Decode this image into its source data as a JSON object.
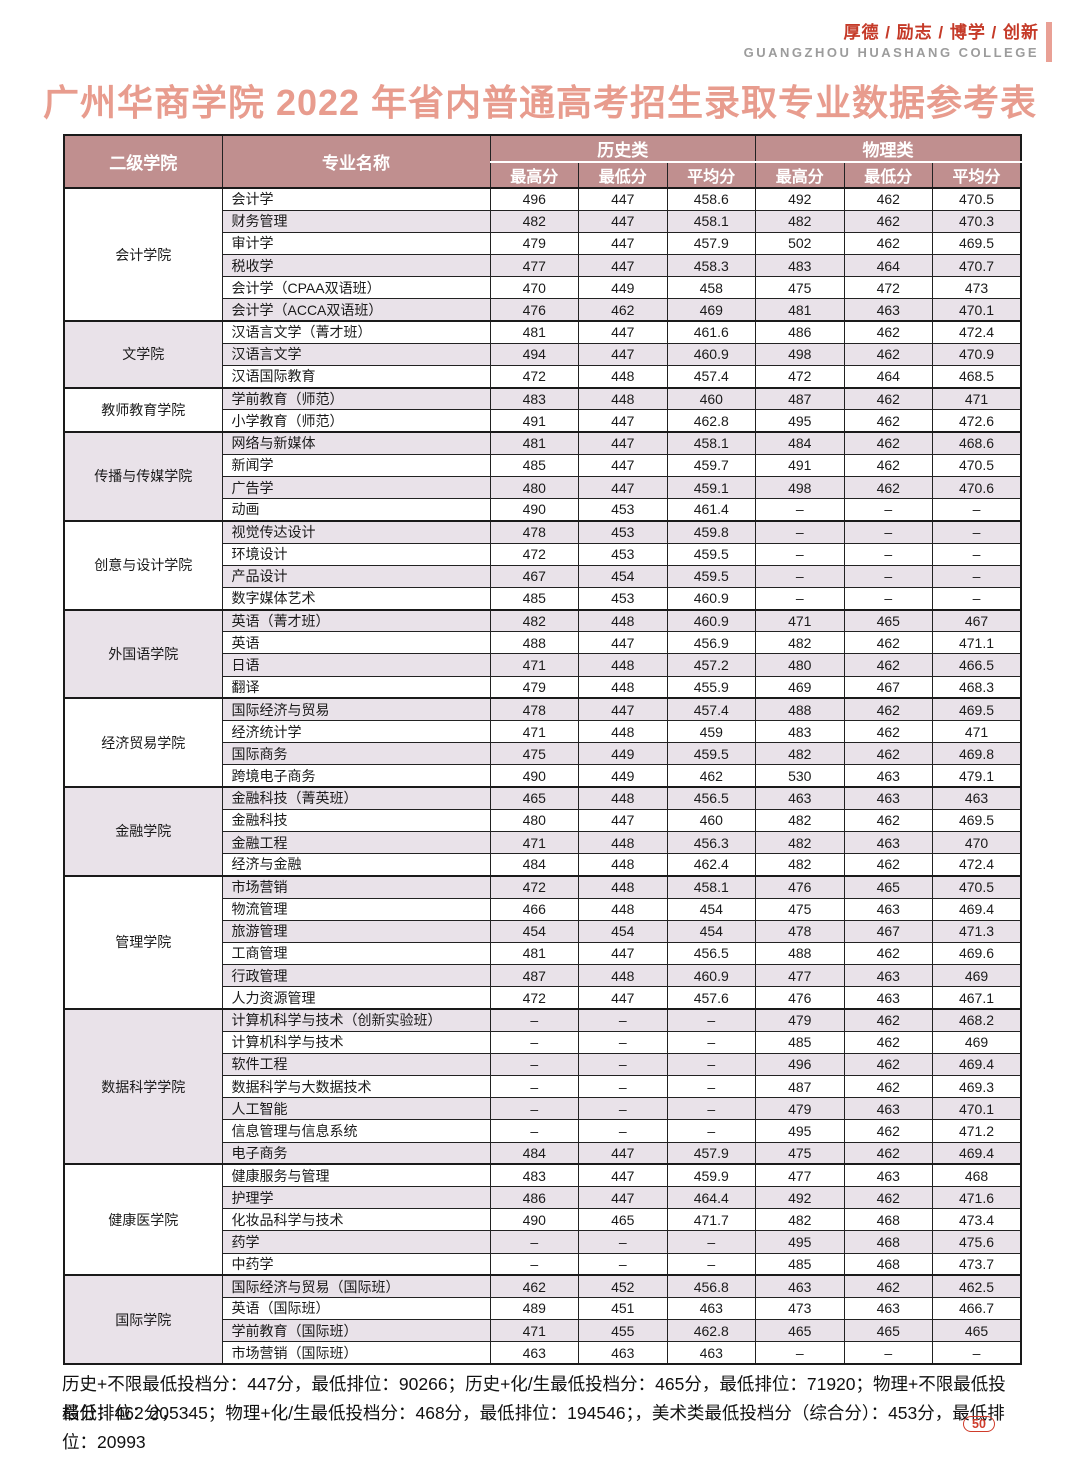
{
  "page": {
    "motto": "厚德 / 励志 / 博学 / 创新",
    "college_en": "GUANGZHOU HUASHANG COLLEGE",
    "title": "广州华商学院 2022 年省内普通高考招生录取专业数据参考表",
    "page_number": "50"
  },
  "table": {
    "headers": {
      "college": "二级学院",
      "major": "专业名称",
      "history": "历史类",
      "physics": "物理类",
      "max": "最高分",
      "min": "最低分",
      "avg": "平均分"
    },
    "empty_marker": "–",
    "groups": [
      {
        "college": "会计学院",
        "rows": [
          {
            "major": "会计学",
            "scores": [
              "496",
              "447",
              "458.6",
              "492",
              "462",
              "470.5"
            ]
          },
          {
            "major": "财务管理",
            "scores": [
              "482",
              "447",
              "458.1",
              "482",
              "462",
              "470.3"
            ]
          },
          {
            "major": "审计学",
            "scores": [
              "479",
              "447",
              "457.9",
              "502",
              "462",
              "469.5"
            ]
          },
          {
            "major": "税收学",
            "scores": [
              "477",
              "447",
              "458.3",
              "483",
              "464",
              "470.7"
            ]
          },
          {
            "major": "会计学（CPAA双语班）",
            "scores": [
              "470",
              "449",
              "458",
              "475",
              "472",
              "473"
            ]
          },
          {
            "major": "会计学（ACCA双语班）",
            "scores": [
              "476",
              "462",
              "469",
              "481",
              "463",
              "470.1"
            ]
          }
        ]
      },
      {
        "college": "文学院",
        "rows": [
          {
            "major": "汉语言文学（菁才班）",
            "scores": [
              "481",
              "447",
              "461.6",
              "486",
              "462",
              "472.4"
            ]
          },
          {
            "major": "汉语言文学",
            "scores": [
              "494",
              "447",
              "460.9",
              "498",
              "462",
              "470.9"
            ]
          },
          {
            "major": "汉语国际教育",
            "scores": [
              "472",
              "448",
              "457.4",
              "472",
              "464",
              "468.5"
            ]
          }
        ]
      },
      {
        "college": "教师教育学院",
        "rows": [
          {
            "major": "学前教育（师范）",
            "scores": [
              "483",
              "448",
              "460",
              "487",
              "462",
              "471"
            ]
          },
          {
            "major": "小学教育（师范）",
            "scores": [
              "491",
              "447",
              "462.8",
              "495",
              "462",
              "472.6"
            ]
          }
        ]
      },
      {
        "college": "传播与传媒学院",
        "rows": [
          {
            "major": "网络与新媒体",
            "scores": [
              "481",
              "447",
              "458.1",
              "484",
              "462",
              "468.6"
            ]
          },
          {
            "major": "新闻学",
            "scores": [
              "485",
              "447",
              "459.7",
              "491",
              "462",
              "470.5"
            ]
          },
          {
            "major": "广告学",
            "scores": [
              "480",
              "447",
              "459.1",
              "498",
              "462",
              "470.6"
            ]
          },
          {
            "major": "动画",
            "scores": [
              "490",
              "453",
              "461.4",
              "–",
              "–",
              "–"
            ]
          }
        ]
      },
      {
        "college": "创意与设计学院",
        "rows": [
          {
            "major": "视觉传达设计",
            "scores": [
              "478",
              "453",
              "459.8",
              "–",
              "–",
              "–"
            ]
          },
          {
            "major": "环境设计",
            "scores": [
              "472",
              "453",
              "459.5",
              "–",
              "–",
              "–"
            ]
          },
          {
            "major": "产品设计",
            "scores": [
              "467",
              "454",
              "459.5",
              "–",
              "–",
              "–"
            ]
          },
          {
            "major": "数字媒体艺术",
            "scores": [
              "485",
              "453",
              "460.9",
              "–",
              "–",
              "–"
            ]
          }
        ]
      },
      {
        "college": "外国语学院",
        "rows": [
          {
            "major": "英语（菁才班）",
            "scores": [
              "482",
              "448",
              "460.9",
              "471",
              "465",
              "467"
            ]
          },
          {
            "major": "英语",
            "scores": [
              "488",
              "447",
              "456.9",
              "482",
              "462",
              "471.1"
            ]
          },
          {
            "major": "日语",
            "scores": [
              "471",
              "448",
              "457.2",
              "480",
              "462",
              "466.5"
            ]
          },
          {
            "major": "翻译",
            "scores": [
              "479",
              "448",
              "455.9",
              "469",
              "467",
              "468.3"
            ]
          }
        ]
      },
      {
        "college": "经济贸易学院",
        "rows": [
          {
            "major": "国际经济与贸易",
            "scores": [
              "478",
              "447",
              "457.4",
              "488",
              "462",
              "469.5"
            ]
          },
          {
            "major": "经济统计学",
            "scores": [
              "471",
              "448",
              "459",
              "483",
              "462",
              "471"
            ]
          },
          {
            "major": "国际商务",
            "scores": [
              "475",
              "449",
              "459.5",
              "482",
              "462",
              "469.8"
            ]
          },
          {
            "major": "跨境电子商务",
            "scores": [
              "490",
              "449",
              "462",
              "530",
              "463",
              "479.1"
            ]
          }
        ]
      },
      {
        "college": "金融学院",
        "rows": [
          {
            "major": "金融科技（菁英班）",
            "scores": [
              "465",
              "448",
              "456.5",
              "463",
              "463",
              "463"
            ]
          },
          {
            "major": "金融科技",
            "scores": [
              "480",
              "447",
              "460",
              "482",
              "462",
              "469.5"
            ]
          },
          {
            "major": "金融工程",
            "scores": [
              "471",
              "448",
              "456.3",
              "482",
              "463",
              "470"
            ]
          },
          {
            "major": "经济与金融",
            "scores": [
              "484",
              "448",
              "462.4",
              "482",
              "462",
              "472.4"
            ]
          }
        ]
      },
      {
        "college": "管理学院",
        "rows": [
          {
            "major": "市场营销",
            "scores": [
              "472",
              "448",
              "458.1",
              "476",
              "465",
              "470.5"
            ]
          },
          {
            "major": "物流管理",
            "scores": [
              "466",
              "448",
              "454",
              "475",
              "463",
              "469.4"
            ]
          },
          {
            "major": "旅游管理",
            "scores": [
              "454",
              "454",
              "454",
              "478",
              "467",
              "471.3"
            ]
          },
          {
            "major": "工商管理",
            "scores": [
              "481",
              "447",
              "456.5",
              "488",
              "462",
              "469.6"
            ]
          },
          {
            "major": "行政管理",
            "scores": [
              "487",
              "448",
              "460.9",
              "477",
              "463",
              "469"
            ]
          },
          {
            "major": "人力资源管理",
            "scores": [
              "472",
              "447",
              "457.6",
              "476",
              "463",
              "467.1"
            ]
          }
        ]
      },
      {
        "college": "数据科学学院",
        "rows": [
          {
            "major": "计算机科学与技术（创新实验班）",
            "scores": [
              "–",
              "–",
              "–",
              "479",
              "462",
              "468.2"
            ]
          },
          {
            "major": "计算机科学与技术",
            "scores": [
              "–",
              "–",
              "–",
              "485",
              "462",
              "469"
            ]
          },
          {
            "major": "软件工程",
            "scores": [
              "–",
              "–",
              "–",
              "496",
              "462",
              "469.4"
            ]
          },
          {
            "major": "数据科学与大数据技术",
            "scores": [
              "–",
              "–",
              "–",
              "487",
              "462",
              "469.3"
            ]
          },
          {
            "major": "人工智能",
            "scores": [
              "–",
              "–",
              "–",
              "479",
              "463",
              "470.1"
            ]
          },
          {
            "major": "信息管理与信息系统",
            "scores": [
              "–",
              "–",
              "–",
              "495",
              "462",
              "471.2"
            ]
          },
          {
            "major": "电子商务",
            "scores": [
              "484",
              "447",
              "457.9",
              "475",
              "462",
              "469.4"
            ]
          }
        ]
      },
      {
        "college": "健康医学院",
        "rows": [
          {
            "major": "健康服务与管理",
            "scores": [
              "483",
              "447",
              "459.9",
              "477",
              "463",
              "468"
            ]
          },
          {
            "major": "护理学",
            "scores": [
              "486",
              "447",
              "464.4",
              "492",
              "462",
              "471.6"
            ]
          },
          {
            "major": "化妆品科学与技术",
            "scores": [
              "490",
              "465",
              "471.7",
              "482",
              "468",
              "473.4"
            ]
          },
          {
            "major": "药学",
            "scores": [
              "–",
              "–",
              "–",
              "495",
              "468",
              "475.6"
            ]
          },
          {
            "major": "中药学",
            "scores": [
              "–",
              "–",
              "–",
              "485",
              "468",
              "473.7"
            ]
          }
        ]
      },
      {
        "college": "国际学院",
        "rows": [
          {
            "major": "国际经济与贸易（国际班）",
            "scores": [
              "462",
              "452",
              "456.8",
              "463",
              "462",
              "462.5"
            ]
          },
          {
            "major": "英语（国际班）",
            "scores": [
              "489",
              "451",
              "463",
              "473",
              "463",
              "466.7"
            ]
          },
          {
            "major": "学前教育（国际班）",
            "scores": [
              "471",
              "455",
              "462.8",
              "465",
              "465",
              "465"
            ]
          },
          {
            "major": "市场营销（国际班）",
            "scores": [
              "463",
              "463",
              "463",
              "–",
              "–",
              "–"
            ]
          }
        ]
      }
    ]
  },
  "footer": {
    "line1": "历史+不限最低投档分：447分，最低排位：90266；历史+化/生最低投档分：465分，最低排位：71920；物理+不限最低投档分：462分，",
    "line2": "最低排位：205345；物理+化/生最低投档分：468分，最低排位：194546；，美术类最低投档分（综合分）：453分，最低排位：20993"
  },
  "colors": {
    "header_bg": "#c08f8f",
    "row_alt_bg": "#e9e2e9",
    "title_salmon": "#e89c8e",
    "motto_red": "#c53a28",
    "english_gray": "#9c9c9c",
    "badge_red": "#cf3b2a"
  }
}
